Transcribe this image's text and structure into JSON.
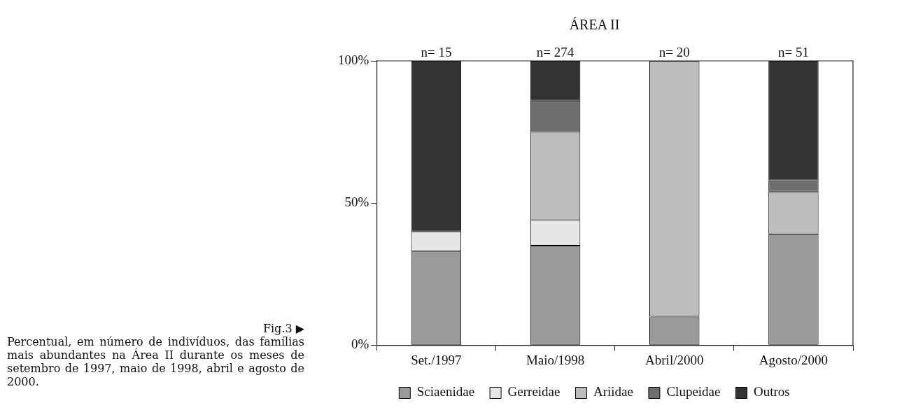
{
  "chart_data": {
    "type": "bar",
    "title": "ÁREA II",
    "stacked": true,
    "categories": [
      "Set./1997",
      "Maio/1998",
      "Abril/2000",
      "Agosto/2000"
    ],
    "series": [
      {
        "name": "Sciaenidae",
        "color": "#9a9a9a",
        "values": [
          33,
          35,
          10,
          39
        ]
      },
      {
        "name": "Gerreidae",
        "color": "#e6e6e6",
        "values": [
          7,
          9,
          0,
          0
        ]
      },
      {
        "name": "Ariidae",
        "color": "#bdbdbd",
        "values": [
          0,
          31,
          90,
          15
        ]
      },
      {
        "name": "Clupeidae",
        "color": "#6e6e6e",
        "values": [
          0,
          11,
          0,
          4
        ]
      },
      {
        "name": "Outros",
        "color": "#333333",
        "values": [
          60,
          14,
          0,
          42
        ]
      }
    ],
    "ylim": [
      0,
      100
    ],
    "yticks": [
      {
        "value": 0,
        "label": "0%"
      },
      {
        "value": 50,
        "label": "50%"
      },
      {
        "value": 100,
        "label": "100%"
      }
    ],
    "grid": false,
    "legend": "bottom",
    "annotations": [
      {
        "text": "n= 15",
        "x": "Set./1997",
        "y": 100
      },
      {
        "text": "n= 274",
        "x": "Maio/1998",
        "y": 100
      },
      {
        "text": "n= 20",
        "x": "Abril/2000",
        "y": 100
      },
      {
        "text": "n= 51",
        "x": "Agosto/2000",
        "y": 100
      },
      "Fig.3 ▶",
      "Percentual, em número de indivíduos, das famílias mais abundantes na Área II durante os meses de setembro de 1997, maio de 1998, abril e agosto de 2000."
    ]
  }
}
